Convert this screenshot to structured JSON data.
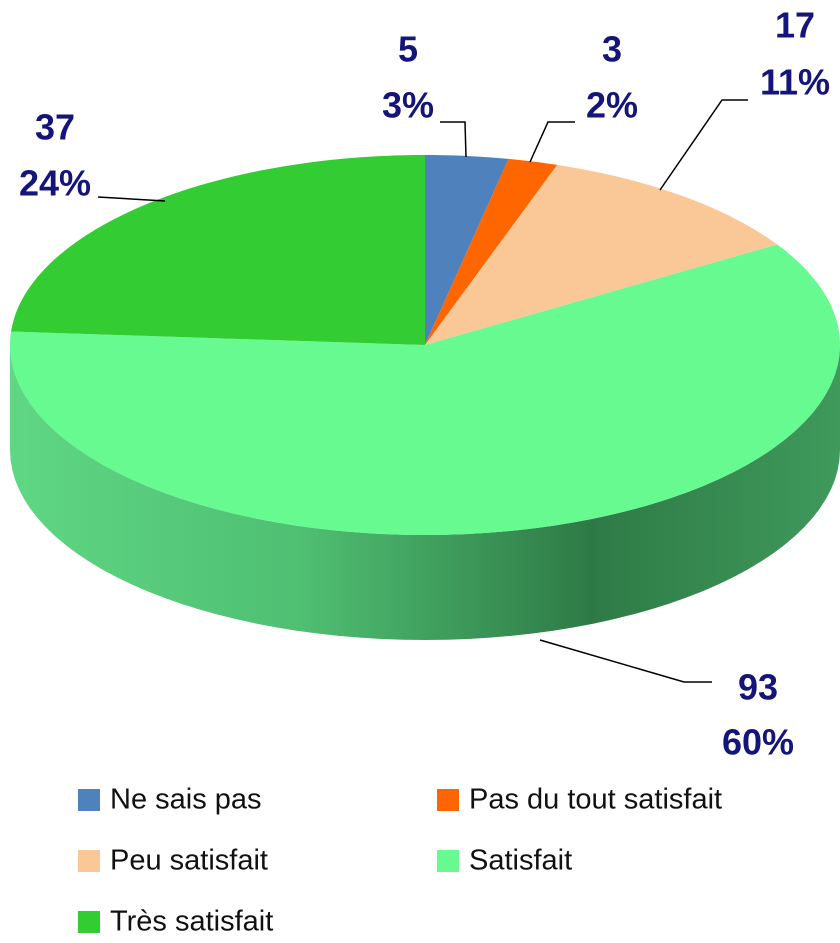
{
  "chart_data": {
    "type": "pie3d",
    "categories": [
      "Ne sais pas",
      "Pas du tout satisfait",
      "Peu satisfait",
      "Satisfait",
      "Très satisfait"
    ],
    "values": [
      5,
      3,
      17,
      93,
      37
    ],
    "percent_labels": [
      "3%",
      "2%",
      "11%",
      "60%",
      "24%"
    ],
    "colors": [
      "#4f81bd",
      "#ff6600",
      "#fac897",
      "#66fa90",
      "#33cc33"
    ],
    "legend": "bottom"
  }
}
